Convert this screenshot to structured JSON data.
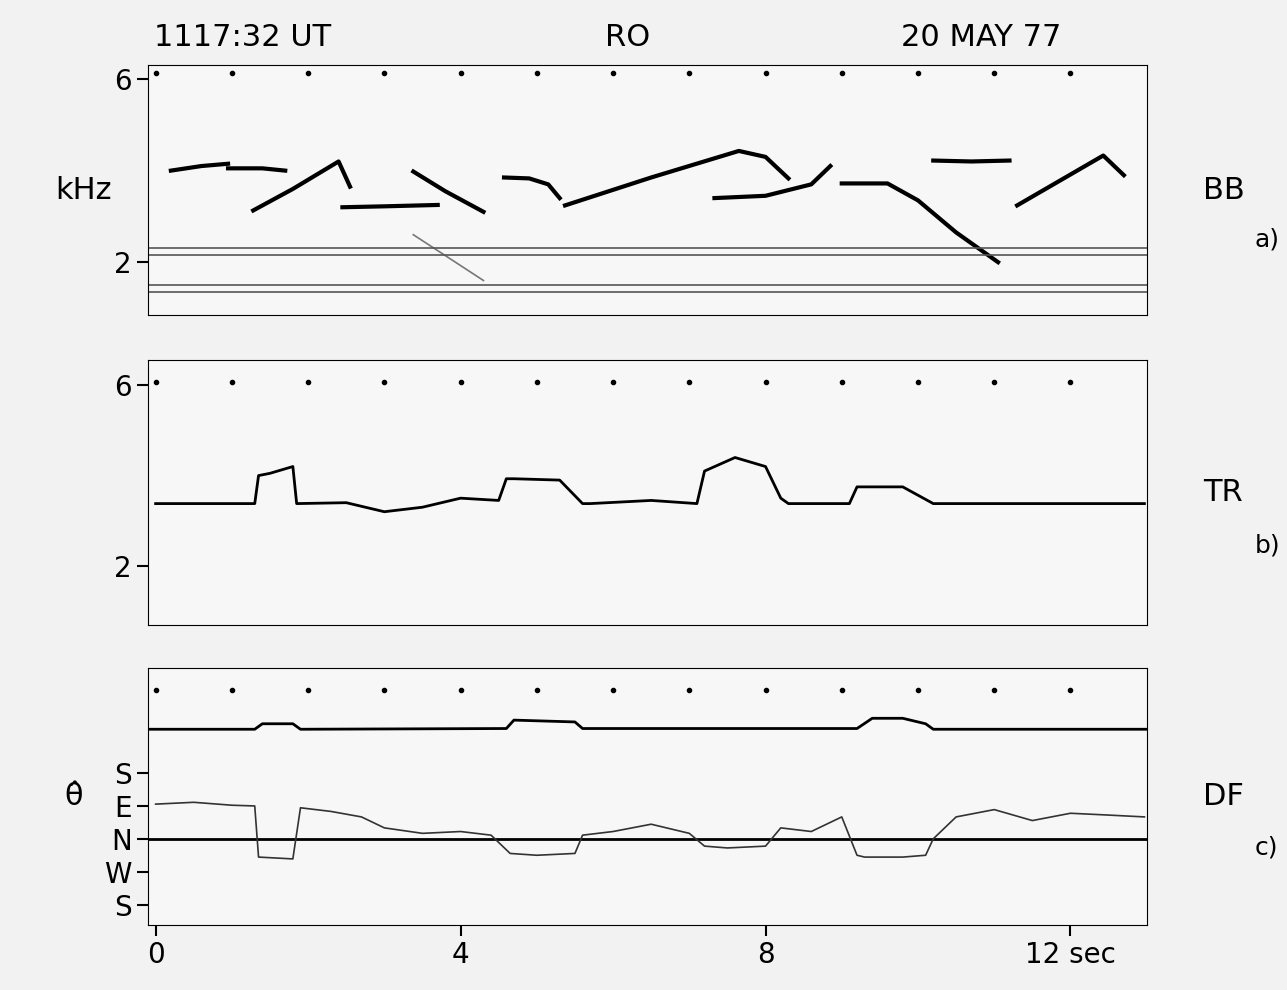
{
  "chart_data": [
    {
      "type": "line",
      "ylabel": "kHz",
      "annotations": [
        "1117:32 UT",
        "RO",
        "20 MAY 77",
        "BB",
        "a)"
      ],
      "xlim": [
        -0.1,
        13.0
      ],
      "ylim": [
        0.85,
        6.3
      ],
      "yticks": [
        2,
        6
      ],
      "tick_labels": "y",
      "series": [
        {
          "color": "#000000",
          "x": [
            0.2,
            0.6,
            0.95
          ],
          "values": [
            4.0,
            4.1,
            4.15
          ]
        },
        {
          "color": "#000000",
          "x": [
            0.95,
            1.4,
            1.7
          ],
          "values": [
            4.05,
            4.05,
            4.0
          ]
        },
        {
          "color": "#000000",
          "x": [
            1.28,
            1.8,
            2.4,
            2.55
          ],
          "values": [
            3.13,
            3.6,
            4.2,
            3.65
          ]
        },
        {
          "color": "#000000",
          "x": [
            2.45,
            3.0,
            3.7
          ],
          "values": [
            3.2,
            3.22,
            3.25
          ]
        },
        {
          "color": "#000000",
          "x": [
            3.38,
            3.8,
            4.3
          ],
          "values": [
            3.98,
            3.55,
            3.1
          ]
        },
        {
          "color": "#000000",
          "x": [
            4.57,
            4.9,
            5.15,
            5.3
          ],
          "values": [
            3.85,
            3.83,
            3.7,
            3.4
          ]
        },
        {
          "color": "#000000",
          "x": [
            5.37,
            6.5,
            7.65,
            8.0,
            8.3
          ],
          "values": [
            3.24,
            3.85,
            4.43,
            4.3,
            3.83
          ]
        },
        {
          "color": "#000000",
          "x": [
            7.33,
            8.0,
            8.6,
            8.85
          ],
          "values": [
            3.4,
            3.45,
            3.7,
            4.1
          ]
        },
        {
          "color": "#000000",
          "x": [
            9.0,
            9.6,
            10.0,
            10.5,
            11.05
          ],
          "values": [
            3.72,
            3.72,
            3.35,
            2.65,
            2.0
          ]
        },
        {
          "color": "#000000",
          "x": [
            10.2,
            10.7,
            11.2
          ],
          "values": [
            4.22,
            4.2,
            4.22
          ]
        },
        {
          "color": "#000000",
          "x": [
            11.3,
            12.43,
            12.7
          ],
          "values": [
            3.24,
            4.33,
            3.9
          ]
        },
        {
          "color": "#777777",
          "x": [
            3.38,
            4.3
          ],
          "values": [
            2.6,
            1.6
          ]
        },
        {
          "color": "#555555",
          "x": [
            -0.1,
            13.0
          ],
          "values": [
            2.3,
            2.3
          ]
        },
        {
          "color": "#555555",
          "x": [
            -0.1,
            13.0
          ],
          "values": [
            2.15,
            2.15
          ]
        },
        {
          "color": "#555555",
          "x": [
            -0.1,
            13.0
          ],
          "values": [
            1.5,
            1.5
          ]
        },
        {
          "color": "#555555",
          "x": [
            -0.1,
            13.0
          ],
          "values": [
            1.35,
            1.35
          ]
        },
        {
          "type": "scatter",
          "marker": "dot",
          "color": "#000000",
          "x": [
            0,
            1,
            2,
            3,
            4,
            5,
            6,
            7,
            8,
            9,
            10,
            11,
            12
          ],
          "values": [
            6.13,
            6.13,
            6.13,
            6.13,
            6.13,
            6.13,
            6.13,
            6.13,
            6.13,
            6.13,
            6.13,
            6.13,
            6.13
          ]
        }
      ]
    },
    {
      "type": "line",
      "annotations": [
        "TR",
        "b)"
      ],
      "xlim": [
        -0.1,
        13.0
      ],
      "ylim": [
        0.7,
        6.55
      ],
      "yticks": [
        2,
        6
      ],
      "tick_labels": "y",
      "series": [
        {
          "color": "#000000",
          "x": [
            0,
            1.3,
            1.35,
            1.5,
            1.8,
            1.85,
            2.5,
            3.0,
            3.5,
            4.0,
            4.5,
            4.6,
            4.7,
            5.3,
            5.6,
            5.7,
            6.5,
            7.1,
            7.2,
            7.6,
            8.0,
            8.2,
            8.3,
            9.1,
            9.2,
            9.8,
            10.2,
            10.3,
            12.97
          ],
          "values": [
            3.38,
            3.38,
            4.0,
            4.05,
            4.2,
            3.38,
            3.4,
            3.2,
            3.3,
            3.5,
            3.45,
            3.93,
            3.93,
            3.9,
            3.38,
            3.38,
            3.45,
            3.38,
            4.1,
            4.4,
            4.2,
            3.5,
            3.38,
            3.38,
            3.75,
            3.75,
            3.38,
            3.38,
            3.38
          ]
        },
        {
          "type": "scatter",
          "marker": "dot",
          "color": "#000000",
          "x": [
            0,
            1,
            2,
            3,
            4,
            5,
            6,
            7,
            8,
            9,
            10,
            11,
            12
          ],
          "values": [
            6.07,
            6.07,
            6.07,
            6.07,
            6.07,
            6.07,
            6.07,
            6.07,
            6.07,
            6.07,
            6.07,
            6.07,
            6.07
          ]
        }
      ]
    },
    {
      "type": "line",
      "ylabel": "θ̂",
      "annotations": [
        "DF",
        "c)"
      ],
      "xlim": [
        -0.1,
        13.0
      ],
      "ylim": [
        -235,
        467
      ],
      "xticks": [
        0,
        4,
        8,
        {
          "value": 12,
          "label": "12 sec"
        }
      ],
      "yticks": [
        {
          "value": 180,
          "label": "S"
        },
        {
          "value": 90,
          "label": "E"
        },
        {
          "value": 0,
          "label": "N"
        },
        {
          "value": -90,
          "label": "W"
        },
        {
          "value": -180,
          "label": "S"
        }
      ],
      "series": [
        {
          "color": "#000000",
          "x": [
            -0.1,
            1.3,
            1.4,
            1.8,
            1.9,
            4.6,
            4.7,
            5.5,
            5.6,
            9.2,
            9.4,
            9.8,
            10.1,
            10.2,
            13.0
          ],
          "values": [
            300,
            300,
            315,
            315,
            300,
            302,
            325,
            320,
            302,
            302,
            330,
            330,
            315,
            300,
            300
          ]
        },
        {
          "color": "#000000",
          "x": [
            -0.1,
            13.0
          ],
          "values": [
            0,
            0
          ]
        },
        {
          "color": "#333333",
          "x": [
            0,
            0.5,
            1.0,
            1.3,
            1.35,
            1.8,
            1.9,
            2.3,
            2.7,
            3.0,
            3.5,
            4.0,
            4.4,
            4.6,
            4.65,
            5.0,
            5.5,
            5.6,
            6.0,
            6.5,
            7.0,
            7.2,
            7.5,
            8.0,
            8.2,
            8.6,
            9.0,
            9.2,
            9.3,
            9.8,
            10.1,
            10.2,
            10.5,
            11.0,
            11.5,
            12.0,
            12.5,
            12.97
          ],
          "values": [
            95,
            100,
            92,
            90,
            -50,
            -55,
            85,
            75,
            60,
            30,
            15,
            20,
            10,
            -30,
            -40,
            -45,
            -40,
            10,
            20,
            40,
            15,
            -20,
            -25,
            -20,
            30,
            20,
            60,
            -45,
            -50,
            -50,
            -45,
            0,
            60,
            80,
            50,
            70,
            65,
            60
          ]
        },
        {
          "type": "scatter",
          "marker": "dot",
          "color": "#000000",
          "x": [
            0,
            1,
            2,
            3,
            4,
            5,
            6,
            7,
            8,
            9,
            10,
            11,
            12
          ],
          "values": [
            407,
            407,
            407,
            407,
            407,
            407,
            407,
            407,
            407,
            407,
            407,
            407,
            407
          ]
        }
      ]
    }
  ]
}
